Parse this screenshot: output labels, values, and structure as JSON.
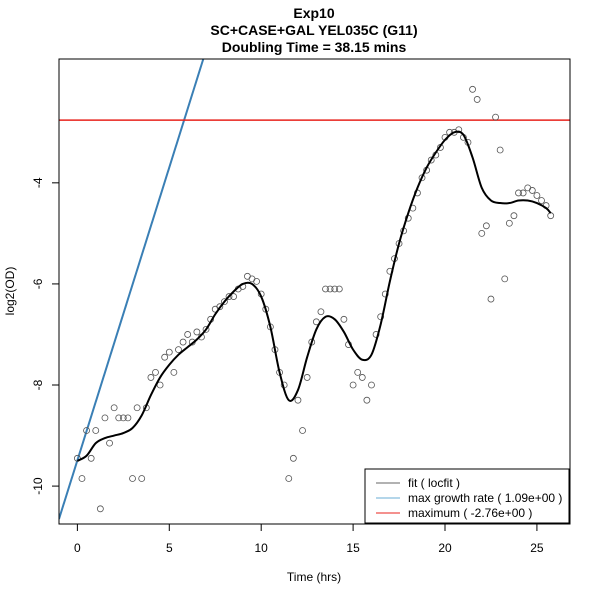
{
  "chart_data": {
    "type": "scatter",
    "title": "Exp10",
    "subtitle": "SC+CASE+GAL YEL035C (G11)",
    "subtitle2": "Doubling Time = 38.15 mins",
    "xlabel": "Time (hrs)",
    "ylabel": "log2(OD)",
    "xlim": [
      -1,
      26.8
    ],
    "ylim": [
      -10.75,
      -1.55
    ],
    "xticks": [
      0,
      5,
      10,
      15,
      20,
      25
    ],
    "yticks": [
      -10,
      -8,
      -6,
      -4
    ],
    "grid": false,
    "legend_position": "bottom-right",
    "points": [
      {
        "x": 0.0,
        "y": -9.45
      },
      {
        "x": 0.25,
        "y": -9.85
      },
      {
        "x": 0.5,
        "y": -8.9
      },
      {
        "x": 0.75,
        "y": -9.45
      },
      {
        "x": 1.0,
        "y": -8.9
      },
      {
        "x": 1.25,
        "y": -10.45
      },
      {
        "x": 1.5,
        "y": -8.65
      },
      {
        "x": 1.75,
        "y": -9.15
      },
      {
        "x": 2.0,
        "y": -8.45
      },
      {
        "x": 2.25,
        "y": -8.65
      },
      {
        "x": 2.5,
        "y": -8.65
      },
      {
        "x": 2.75,
        "y": -8.65
      },
      {
        "x": 3.0,
        "y": -9.85
      },
      {
        "x": 3.25,
        "y": -8.45
      },
      {
        "x": 3.5,
        "y": -9.85
      },
      {
        "x": 3.75,
        "y": -8.45
      },
      {
        "x": 4.0,
        "y": -7.85
      },
      {
        "x": 4.25,
        "y": -7.75
      },
      {
        "x": 4.5,
        "y": -8.0
      },
      {
        "x": 4.75,
        "y": -7.45
      },
      {
        "x": 5.0,
        "y": -7.35
      },
      {
        "x": 5.25,
        "y": -7.75
      },
      {
        "x": 5.5,
        "y": -7.3
      },
      {
        "x": 5.75,
        "y": -7.15
      },
      {
        "x": 6.0,
        "y": -7.0
      },
      {
        "x": 6.25,
        "y": -7.15
      },
      {
        "x": 6.5,
        "y": -6.95
      },
      {
        "x": 6.75,
        "y": -7.05
      },
      {
        "x": 7.0,
        "y": -6.9
      },
      {
        "x": 7.25,
        "y": -6.7
      },
      {
        "x": 7.5,
        "y": -6.5
      },
      {
        "x": 7.75,
        "y": -6.45
      },
      {
        "x": 8.0,
        "y": -6.35
      },
      {
        "x": 8.25,
        "y": -6.25
      },
      {
        "x": 8.5,
        "y": -6.25
      },
      {
        "x": 8.75,
        "y": -6.1
      },
      {
        "x": 9.0,
        "y": -6.05
      },
      {
        "x": 9.25,
        "y": -5.85
      },
      {
        "x": 9.5,
        "y": -5.9
      },
      {
        "x": 9.75,
        "y": -5.95
      },
      {
        "x": 10.0,
        "y": -6.2
      },
      {
        "x": 10.25,
        "y": -6.5
      },
      {
        "x": 10.5,
        "y": -6.85
      },
      {
        "x": 10.75,
        "y": -7.3
      },
      {
        "x": 11.0,
        "y": -7.75
      },
      {
        "x": 11.25,
        "y": -8.0
      },
      {
        "x": 11.5,
        "y": -9.85
      },
      {
        "x": 11.75,
        "y": -9.45
      },
      {
        "x": 12.0,
        "y": -8.3
      },
      {
        "x": 12.25,
        "y": -8.9
      },
      {
        "x": 12.5,
        "y": -7.85
      },
      {
        "x": 12.75,
        "y": -7.15
      },
      {
        "x": 13.0,
        "y": -6.75
      },
      {
        "x": 13.25,
        "y": -6.55
      },
      {
        "x": 13.5,
        "y": -6.1
      },
      {
        "x": 13.75,
        "y": -6.1
      },
      {
        "x": 14.0,
        "y": -6.1
      },
      {
        "x": 14.25,
        "y": -6.1
      },
      {
        "x": 14.5,
        "y": -6.7
      },
      {
        "x": 14.75,
        "y": -7.2
      },
      {
        "x": 15.0,
        "y": -8.0
      },
      {
        "x": 15.25,
        "y": -7.75
      },
      {
        "x": 15.5,
        "y": -7.85
      },
      {
        "x": 15.75,
        "y": -8.3
      },
      {
        "x": 16.0,
        "y": -8.0
      },
      {
        "x": 16.25,
        "y": -7.0
      },
      {
        "x": 16.5,
        "y": -6.65
      },
      {
        "x": 16.75,
        "y": -6.2
      },
      {
        "x": 17.0,
        "y": -5.75
      },
      {
        "x": 17.25,
        "y": -5.5
      },
      {
        "x": 17.5,
        "y": -5.2
      },
      {
        "x": 17.75,
        "y": -4.95
      },
      {
        "x": 18.0,
        "y": -4.7
      },
      {
        "x": 18.25,
        "y": -4.5
      },
      {
        "x": 18.5,
        "y": -4.2
      },
      {
        "x": 18.75,
        "y": -3.9
      },
      {
        "x": 19.0,
        "y": -3.75
      },
      {
        "x": 19.25,
        "y": -3.55
      },
      {
        "x": 19.5,
        "y": -3.45
      },
      {
        "x": 19.75,
        "y": -3.3
      },
      {
        "x": 20.0,
        "y": -3.1
      },
      {
        "x": 20.25,
        "y": -3.0
      },
      {
        "x": 20.5,
        "y": -3.0
      },
      {
        "x": 20.75,
        "y": -2.95
      },
      {
        "x": 21.0,
        "y": -3.1
      },
      {
        "x": 21.25,
        "y": -3.2
      },
      {
        "x": 21.5,
        "y": -2.15
      },
      {
        "x": 21.75,
        "y": -2.35
      },
      {
        "x": 22.0,
        "y": -5.0
      },
      {
        "x": 22.25,
        "y": -4.85
      },
      {
        "x": 22.5,
        "y": -6.3
      },
      {
        "x": 22.75,
        "y": -2.7
      },
      {
        "x": 23.0,
        "y": -3.35
      },
      {
        "x": 23.25,
        "y": -5.9
      },
      {
        "x": 23.5,
        "y": -4.8
      },
      {
        "x": 23.75,
        "y": -4.65
      },
      {
        "x": 24.0,
        "y": -4.2
      },
      {
        "x": 24.25,
        "y": -4.2
      },
      {
        "x": 24.5,
        "y": -4.1
      },
      {
        "x": 24.75,
        "y": -4.15
      },
      {
        "x": 25.0,
        "y": -4.25
      },
      {
        "x": 25.25,
        "y": -4.35
      },
      {
        "x": 25.5,
        "y": -4.45
      },
      {
        "x": 25.75,
        "y": -4.65
      }
    ],
    "fit_curve": [
      {
        "x": 0.0,
        "y": -9.5
      },
      {
        "x": 0.5,
        "y": -9.4
      },
      {
        "x": 1.0,
        "y": -9.15
      },
      {
        "x": 1.5,
        "y": -9.05
      },
      {
        "x": 2.0,
        "y": -9.0
      },
      {
        "x": 2.5,
        "y": -8.95
      },
      {
        "x": 3.0,
        "y": -8.85
      },
      {
        "x": 3.5,
        "y": -8.6
      },
      {
        "x": 4.0,
        "y": -8.2
      },
      {
        "x": 4.5,
        "y": -7.85
      },
      {
        "x": 5.0,
        "y": -7.6
      },
      {
        "x": 5.5,
        "y": -7.4
      },
      {
        "x": 6.0,
        "y": -7.25
      },
      {
        "x": 6.5,
        "y": -7.1
      },
      {
        "x": 7.0,
        "y": -6.9
      },
      {
        "x": 7.5,
        "y": -6.6
      },
      {
        "x": 8.0,
        "y": -6.35
      },
      {
        "x": 8.5,
        "y": -6.15
      },
      {
        "x": 9.0,
        "y": -6.0
      },
      {
        "x": 9.5,
        "y": -6.0
      },
      {
        "x": 10.0,
        "y": -6.25
      },
      {
        "x": 10.5,
        "y": -6.85
      },
      {
        "x": 11.0,
        "y": -7.75
      },
      {
        "x": 11.5,
        "y": -8.3
      },
      {
        "x": 12.0,
        "y": -8.1
      },
      {
        "x": 12.5,
        "y": -7.45
      },
      {
        "x": 13.0,
        "y": -6.9
      },
      {
        "x": 13.5,
        "y": -6.65
      },
      {
        "x": 14.0,
        "y": -6.7
      },
      {
        "x": 14.5,
        "y": -6.95
      },
      {
        "x": 15.0,
        "y": -7.3
      },
      {
        "x": 15.5,
        "y": -7.5
      },
      {
        "x": 16.0,
        "y": -7.4
      },
      {
        "x": 16.5,
        "y": -6.8
      },
      {
        "x": 17.0,
        "y": -5.95
      },
      {
        "x": 17.5,
        "y": -5.2
      },
      {
        "x": 18.0,
        "y": -4.6
      },
      {
        "x": 18.5,
        "y": -4.1
      },
      {
        "x": 19.0,
        "y": -3.7
      },
      {
        "x": 19.5,
        "y": -3.4
      },
      {
        "x": 20.0,
        "y": -3.15
      },
      {
        "x": 20.5,
        "y": -3.0
      },
      {
        "x": 21.0,
        "y": -3.05
      },
      {
        "x": 21.5,
        "y": -3.5
      },
      {
        "x": 22.0,
        "y": -4.1
      },
      {
        "x": 22.5,
        "y": -4.35
      },
      {
        "x": 23.0,
        "y": -4.4
      },
      {
        "x": 23.5,
        "y": -4.4
      },
      {
        "x": 24.0,
        "y": -4.35
      },
      {
        "x": 24.5,
        "y": -4.35
      },
      {
        "x": 25.0,
        "y": -4.4
      },
      {
        "x": 25.5,
        "y": -4.5
      },
      {
        "x": 25.75,
        "y": -4.6
      }
    ],
    "max_growth_line": {
      "x1": -1.0,
      "y1": -10.65,
      "x2": 6.85,
      "y2": -1.55
    },
    "maximum_line": {
      "y": -2.76
    },
    "colors": {
      "fit": "#000000",
      "growth": "#3a7fb5",
      "maximum": "#e8231c",
      "points": "#555555"
    },
    "legend": [
      {
        "label": "fit ( locfit )",
        "color": "#666666"
      },
      {
        "label": "max growth rate ( 1.09e+00 )",
        "color": "#6aaed6"
      },
      {
        "label": "maximum ( -2.76e+00 )",
        "color": "#e8231c"
      }
    ]
  }
}
